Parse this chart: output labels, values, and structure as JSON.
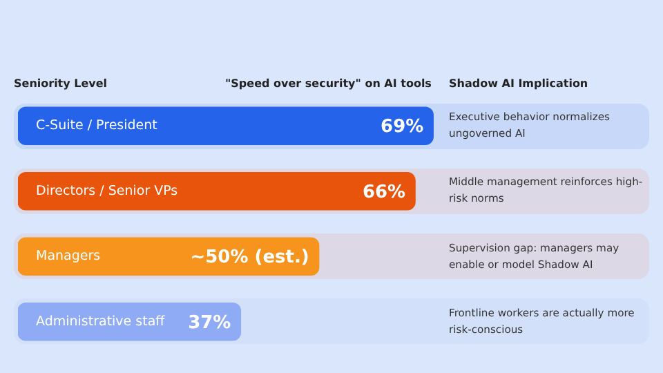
{
  "chart_data": {
    "type": "bar",
    "orientation": "horizontal",
    "title": "\"Speed over security\" on AI tools",
    "ylabel": "Seniority Level",
    "categories": [
      "C-Suite / President",
      "Directors / Senior VPs",
      "Managers",
      "Administrative staff"
    ],
    "values": [
      69,
      66,
      50,
      37
    ],
    "colors": [
      "#2563eb",
      "#e8540c",
      "#f7941d",
      "#8fabf5"
    ],
    "value_labels": [
      "69%",
      "66%",
      "~50% (est.)",
      "37%"
    ],
    "tick_labels": false,
    "annotations": [
      "Shadow AI Implication",
      "Executive behavior normalizes ungoverned AI",
      "Middle management reinforces high-risk norms",
      "Supervision gap: managers may enable or model Shadow AI",
      "Frontline workers are actually more risk-conscious"
    ]
  }
}
